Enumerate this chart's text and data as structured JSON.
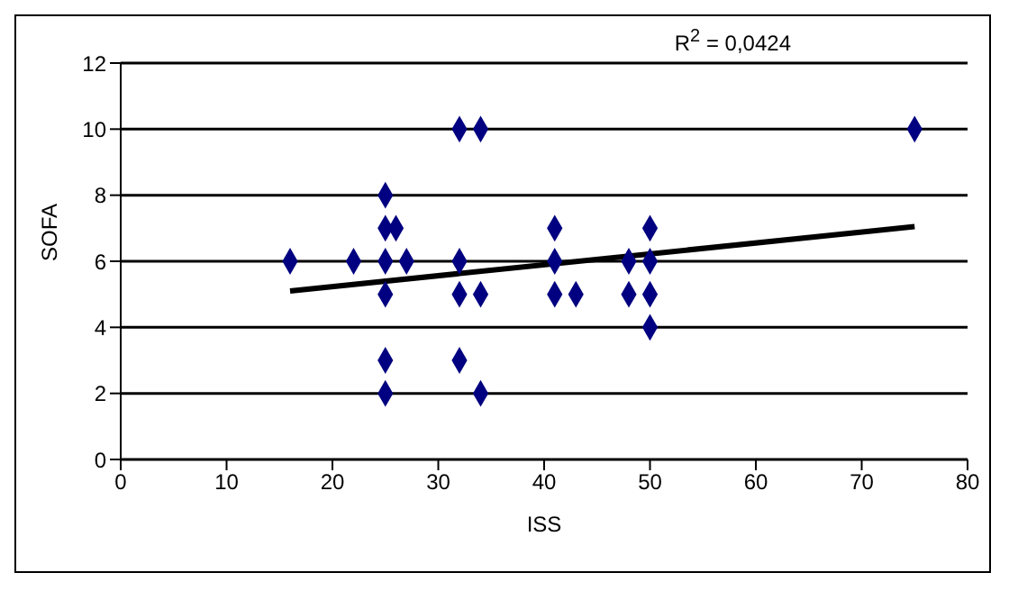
{
  "chart_data": {
    "type": "scatter",
    "xlabel": "ISS",
    "ylabel": "SOFA",
    "annotations": [
      "R$^{2}$ = 0,0424"
    ],
    "xlim": [
      0,
      80
    ],
    "xticks": [
      0,
      10,
      20,
      30,
      40,
      50,
      60,
      70,
      80
    ],
    "ylim": [
      0,
      12
    ],
    "yticks": [
      0,
      2,
      4,
      6,
      8,
      10,
      12
    ],
    "grid": "y",
    "series": [
      {
        "color": "#000080",
        "marker": "diamond",
        "x": [
          16,
          22,
          25,
          25,
          25,
          25,
          25,
          25,
          26,
          27,
          32,
          32,
          32,
          32,
          34,
          34,
          34,
          41,
          41,
          41,
          43,
          48,
          48,
          50,
          50,
          50,
          50,
          75
        ],
        "values": [
          6,
          6,
          8,
          7,
          6,
          5,
          3,
          2,
          7,
          6,
          10,
          6,
          5,
          3,
          10,
          5,
          2,
          7,
          6,
          5,
          5,
          6,
          5,
          7,
          6,
          5,
          4,
          10
        ]
      },
      {
        "type": "line",
        "marker": "none",
        "color": "#000000",
        "x": [
          16,
          75
        ],
        "values": [
          5.1,
          7.05
        ]
      }
    ]
  }
}
